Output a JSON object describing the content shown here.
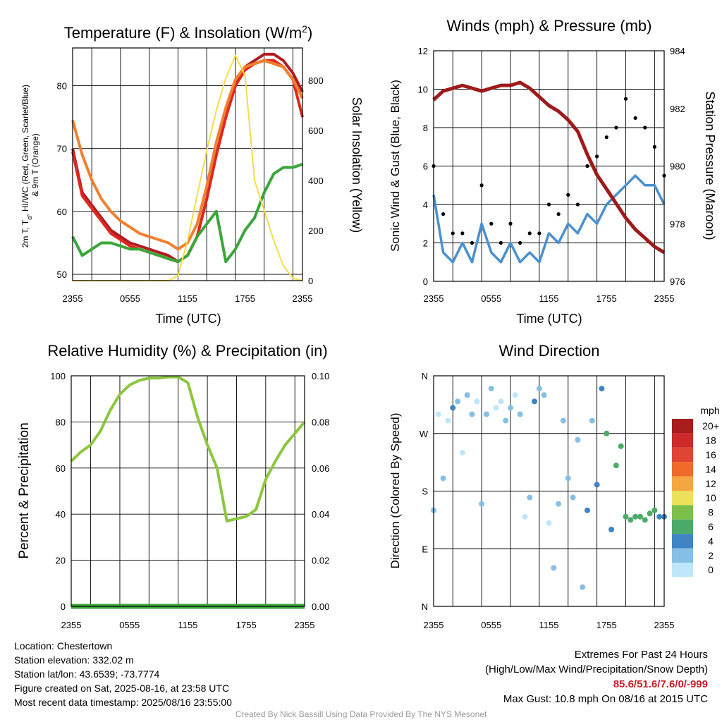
{
  "chart_data": [
    {
      "type": "line",
      "title": "Temperature (F) & Insolation (W/m²)",
      "xlabel": "Time (UTC)",
      "ylabel": "2m T, Td, HI/WC (Red, Green, Scarlet/Blue) & 9m T (Orange)",
      "y2label": "Solar Insolation (Yellow)",
      "x_ticks": [
        "2355",
        "0555",
        "1155",
        "1755",
        "2355"
      ],
      "ylim": [
        49,
        86
      ],
      "y_ticks": [
        50,
        60,
        70,
        80
      ],
      "y2lim": [
        0,
        930
      ],
      "y2_ticks": [
        0,
        200,
        400,
        600,
        800
      ],
      "x_hours": [
        0,
        1,
        2,
        3,
        4,
        5,
        6,
        7,
        8,
        9,
        10,
        11,
        12,
        13,
        14,
        15,
        16,
        17,
        18,
        19,
        20,
        21,
        22,
        23,
        24
      ],
      "series": [
        {
          "name": "2m T",
          "color": "#b01c22",
          "axis": "left",
          "values": [
            70,
            63,
            61,
            59,
            57,
            56,
            55,
            54.5,
            54,
            53.5,
            53,
            52,
            53,
            56,
            62,
            69,
            75,
            80,
            83,
            84,
            85,
            85,
            84,
            82,
            79
          ]
        },
        {
          "name": "HI/WC",
          "color": "#e0281f",
          "axis": "left",
          "values": [
            69.5,
            62.5,
            60.5,
            58.5,
            56.5,
            55.5,
            54.5,
            54,
            53.5,
            53,
            52.5,
            52,
            53,
            56,
            62,
            69,
            75,
            80,
            82.5,
            83.5,
            84,
            84,
            83,
            81,
            75
          ]
        },
        {
          "name": "9m T",
          "color": "#f08030",
          "axis": "left",
          "values": [
            74.5,
            69,
            65,
            62,
            60,
            58.5,
            57.5,
            56.5,
            56,
            55.5,
            55,
            54,
            55,
            58,
            64,
            71,
            76.5,
            81,
            83,
            83.5,
            84,
            83.5,
            83,
            81,
            78
          ]
        },
        {
          "name": "Td",
          "color": "#3aa63a",
          "axis": "left",
          "values": [
            56,
            53,
            54,
            55,
            55,
            54.5,
            54,
            54,
            53.5,
            53,
            52.5,
            52,
            53,
            56,
            58,
            60,
            52,
            54,
            57,
            59,
            63,
            66,
            67,
            67,
            67.5
          ]
        },
        {
          "name": "Solar Insolation",
          "color": "#f5dc4c",
          "axis": "right",
          "values": [
            0,
            0,
            0,
            0,
            0,
            0,
            0,
            0,
            0,
            0,
            0,
            20,
            160,
            340,
            520,
            680,
            810,
            900,
            820,
            400,
            280,
            160,
            60,
            10,
            0
          ]
        }
      ]
    },
    {
      "type": "line",
      "title": "Winds (mph) & Pressure (mb)",
      "xlabel": "Time (UTC)",
      "ylabel": "Sonic Wind & Gust (Blue, Black)",
      "y2label": "Station Pressure (Maroon)",
      "x_ticks": [
        "2355",
        "0555",
        "1155",
        "1755",
        "2355"
      ],
      "ylim": [
        0,
        12
      ],
      "y_ticks": [
        0,
        2,
        4,
        6,
        8,
        10,
        12
      ],
      "y2lim": [
        976,
        984
      ],
      "y2_ticks": [
        976,
        978,
        980,
        982,
        984
      ],
      "x_hours": [
        0,
        1,
        2,
        3,
        4,
        5,
        6,
        7,
        8,
        9,
        10,
        11,
        12,
        13,
        14,
        15,
        16,
        17,
        18,
        19,
        20,
        21,
        22,
        23,
        24
      ],
      "series": [
        {
          "name": "Sonic Wind",
          "color": "#4a90d0",
          "axis": "left",
          "values": [
            4.5,
            1.5,
            1,
            2,
            1,
            3,
            1.5,
            1,
            2,
            1,
            1.5,
            1,
            2.5,
            2,
            3,
            2.5,
            3.5,
            3,
            4,
            4.5,
            5,
            5.5,
            5,
            5,
            4
          ]
        },
        {
          "name": "Gust",
          "color": "#000000",
          "axis": "left",
          "values": [
            6,
            3.5,
            2.5,
            2.5,
            2,
            5,
            3,
            2,
            3,
            2,
            2.5,
            2.5,
            4,
            3.5,
            4.5,
            4,
            6,
            6.5,
            7.5,
            8,
            9.5,
            8.5,
            8,
            7,
            5.5
          ]
        },
        {
          "name": "Station Pressure",
          "color": "#9e1b1b",
          "axis": "right",
          "values": [
            982.3,
            982.6,
            982.7,
            982.8,
            982.7,
            982.6,
            982.7,
            982.8,
            982.8,
            982.9,
            982.7,
            982.4,
            982.1,
            981.9,
            981.6,
            981.2,
            980.4,
            979.7,
            979.2,
            978.7,
            978.2,
            977.8,
            977.5,
            977.2,
            977.0
          ]
        }
      ]
    },
    {
      "type": "line",
      "title": "Relative Humidity (%) & Precipitation (in)",
      "xlabel": "",
      "ylabel": "Percent & Precipitation",
      "x_ticks": [
        "2355",
        "0555",
        "1155",
        "1755",
        "2355"
      ],
      "ylim": [
        0,
        100
      ],
      "y_ticks": [
        0,
        20,
        40,
        60,
        80,
        100
      ],
      "y2lim": [
        0,
        0.1
      ],
      "y2_ticks": [
        "0.00",
        "0.02",
        "0.04",
        "0.06",
        "0.08",
        "0.10"
      ],
      "x_hours": [
        0,
        1,
        2,
        3,
        4,
        5,
        6,
        7,
        8,
        9,
        10,
        11,
        12,
        13,
        14,
        15,
        16,
        17,
        18,
        19,
        20,
        21,
        22,
        23,
        24
      ],
      "series": [
        {
          "name": "Relative Humidity",
          "color": "#8cc63f",
          "axis": "left",
          "values": [
            63,
            67,
            70,
            76,
            85,
            92,
            96,
            98,
            99,
            99,
            99.5,
            99.5,
            97,
            82,
            70,
            60,
            37,
            38,
            39,
            42,
            55,
            63,
            70,
            75,
            80
          ]
        },
        {
          "name": "Precipitation",
          "color": "#3aa63a",
          "axis": "right",
          "values": [
            0,
            0,
            0,
            0,
            0,
            0,
            0,
            0,
            0,
            0,
            0,
            0,
            0,
            0,
            0,
            0,
            0,
            0,
            0,
            0,
            0,
            0,
            0,
            0,
            0
          ]
        }
      ]
    },
    {
      "type": "scatter",
      "title": "Wind Direction",
      "xlabel": "",
      "ylabel": "Direction (Colored By Speed)",
      "x_ticks": [
        "2355",
        "0555",
        "1155",
        "1755",
        "2355"
      ],
      "y_ticks": [
        "N",
        "E",
        "S",
        "W",
        "N"
      ],
      "ylim": [
        0,
        360
      ],
      "colorbar": {
        "unit": "mph",
        "labels": [
          "20+",
          "18",
          "16",
          "14",
          "12",
          "10",
          "8",
          "6",
          "4",
          "2",
          "0"
        ],
        "colors": [
          "#a81c1c",
          "#cc2a2a",
          "#e04434",
          "#f06a2c",
          "#f4a640",
          "#ece05c",
          "#7cc04a",
          "#4caa68",
          "#3f84c4",
          "#86bfe4",
          "#bfe6f8"
        ]
      },
      "x_hours": [
        0,
        0.5,
        1,
        1.5,
        2,
        2.5,
        3,
        3.5,
        4,
        4.5,
        5,
        5.5,
        6,
        6.5,
        7,
        7.5,
        8,
        8.5,
        9,
        9.5,
        10,
        10.5,
        11,
        11.5,
        12,
        12.5,
        13,
        13.5,
        14,
        14.5,
        15,
        15.5,
        16,
        16.5,
        17,
        17.5,
        18,
        18.5,
        19,
        19.5,
        20,
        20.5,
        21,
        21.5,
        22,
        22.5,
        23,
        23.5,
        24
      ],
      "series": [
        {
          "name": "Direction",
          "values": [
            150,
            300,
            200,
            290,
            310,
            320,
            240,
            330,
            300,
            320,
            160,
            300,
            340,
            310,
            320,
            290,
            310,
            330,
            300,
            140,
            170,
            320,
            340,
            330,
            130,
            60,
            160,
            290,
            200,
            170,
            260,
            30,
            150,
            290,
            190,
            340,
            270,
            120,
            220,
            250,
            140,
            135,
            140,
            140,
            135,
            145,
            150,
            140,
            140
          ]
        },
        {
          "name": "Speed",
          "values": [
            3,
            1,
            2,
            1,
            4,
            2,
            1,
            2,
            3,
            1,
            2,
            3,
            2,
            1,
            1,
            2,
            3,
            1,
            2,
            1,
            2,
            4,
            3,
            2,
            1,
            2,
            3,
            2,
            3,
            2,
            3,
            3,
            4,
            3,
            4,
            4,
            6,
            5,
            6,
            7,
            6,
            6,
            7,
            6,
            7,
            6,
            7,
            4,
            4
          ]
        }
      ]
    }
  ],
  "footer": {
    "location": "Location: Chestertown",
    "elevation": "Station elevation: 332.02 m",
    "latlon": "Station lat/lon: 43.6539; -73.7774",
    "created": "Figure created on Sat, 2025-08-16, at 23:58 UTC",
    "recent": "Most recent data timestamp: 2025/08/16 23:55:00",
    "extremes_title": "Extremes For Past 24 Hours",
    "extremes_sub": "(High/Low/Max Wind/Precipitation/Snow Depth)",
    "extremes_values": "85.6/51.6/7.6/0/-999",
    "max_gust": "Max Gust: 10.8 mph On 08/16 at 2015 UTC",
    "credit": "Created By Nick Bassill Using Data Provided By The NYS Mesonet"
  }
}
